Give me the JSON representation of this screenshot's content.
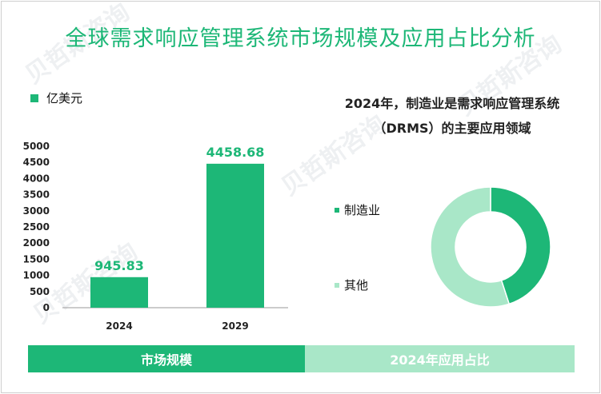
{
  "title": "全球需求响应管理系统市场规模及应用占比分析",
  "bar_chart_legend": "亿美元",
  "pie_title_line1": "2024年，制造业是需求响应管理系统",
  "pie_title_line2": "（DRMS）的主要应用领域",
  "tabs": {
    "left": "市场规模",
    "right": "2024年应用占比"
  },
  "colors": {
    "primary": "#1db777",
    "light": "#a9e7c8"
  },
  "chart_data": [
    {
      "type": "bar",
      "categories": [
        "2024",
        "2029"
      ],
      "values": [
        945.83,
        4458.68
      ],
      "value_labels": [
        "945.83",
        "4458.68"
      ],
      "yticks": [
        "0",
        "500",
        "1000",
        "1500",
        "2000",
        "2500",
        "3000",
        "3500",
        "4000",
        "4500",
        "5000"
      ],
      "ylim": [
        0,
        5000
      ],
      "legend": "亿美元"
    },
    {
      "type": "pie",
      "labels": [
        "制造业",
        "其他"
      ],
      "values": [
        45,
        55
      ],
      "donut": true
    }
  ]
}
